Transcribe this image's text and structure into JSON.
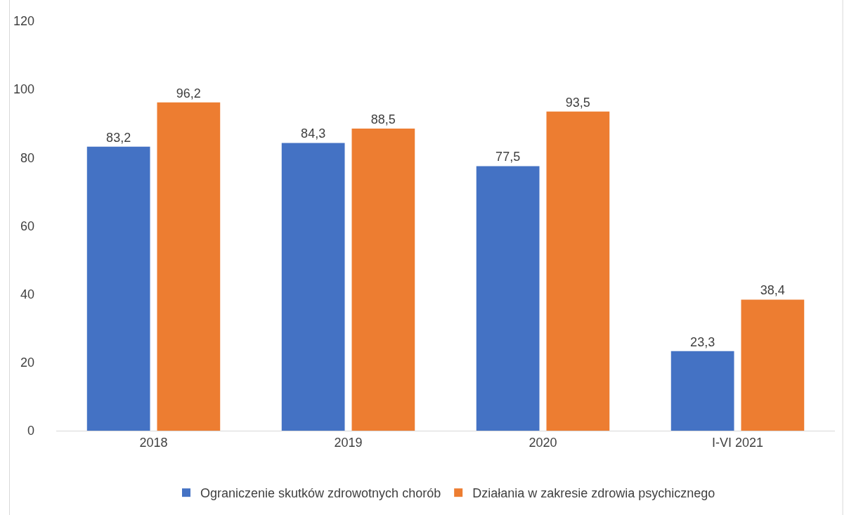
{
  "chart_data": {
    "type": "bar",
    "categories": [
      "2018",
      "2019",
      "2020",
      "I-VI 2021"
    ],
    "series": [
      {
        "name": "Ograniczenie skutków zdrowotnych chorób",
        "color": "#4472c4",
        "values": [
          83.2,
          84.3,
          77.5,
          23.3
        ],
        "value_labels": [
          "83,2",
          "84,3",
          "77,5",
          "23,3"
        ]
      },
      {
        "name": "Działania w zakresie zdrowia psychicznego",
        "color": "#ed7d31",
        "values": [
          96.2,
          88.5,
          93.5,
          38.4
        ],
        "value_labels": [
          "96,2",
          "88,5",
          "93,5",
          "38,4"
        ]
      }
    ],
    "ylim": [
      0,
      120
    ],
    "yticks": [
      0,
      20,
      40,
      60,
      80,
      100,
      120
    ],
    "grid": false,
    "legend": "bottom"
  }
}
